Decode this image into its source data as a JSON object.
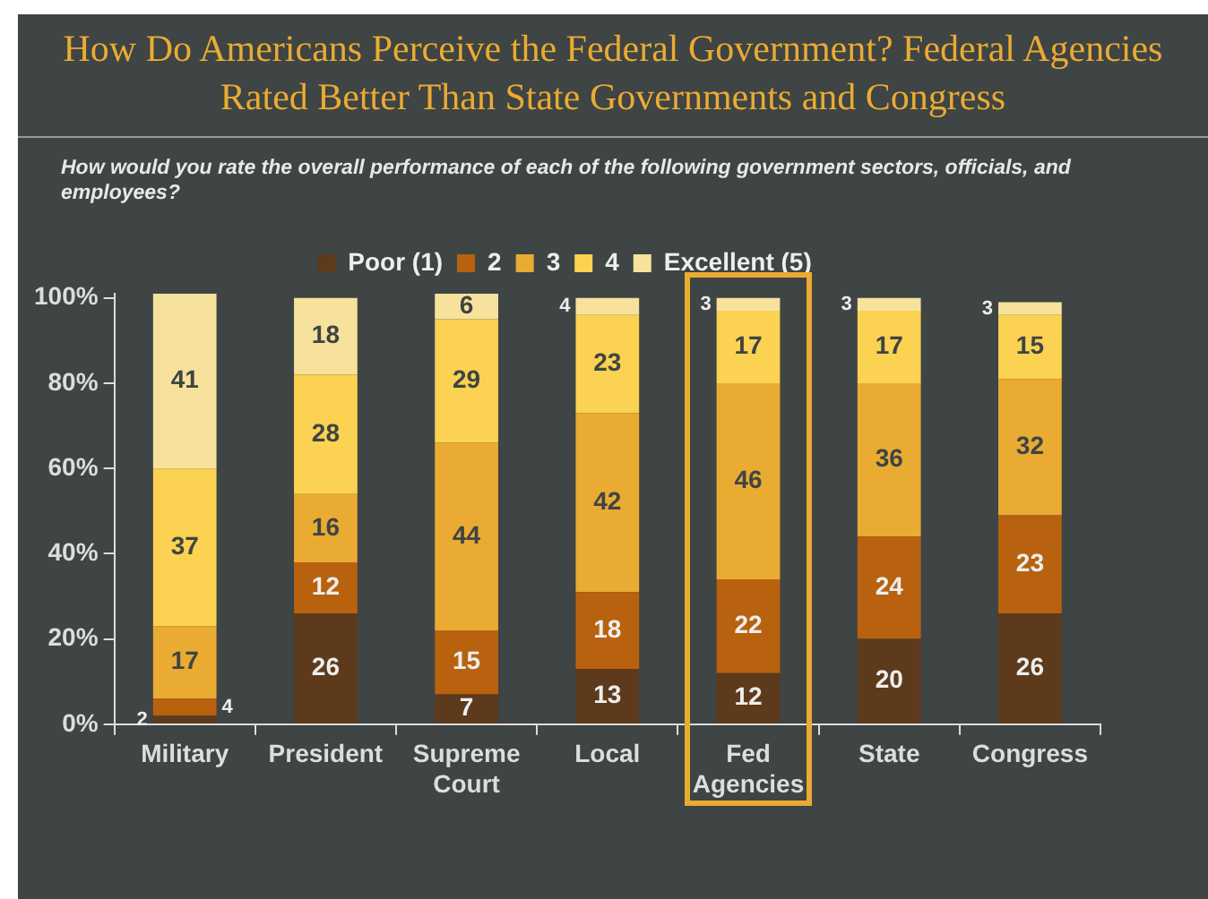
{
  "chart_data": {
    "type": "bar",
    "stacked": true,
    "title": "How Do Americans Perceive the Federal Government? Federal Agencies Rated Better Than State Governments and Congress",
    "subtitle": "How would you rate the overall performance of each of the following government sectors, officials, and employees?",
    "categories": [
      "Military",
      "President",
      "Supreme Court",
      "Local",
      "Fed Agencies",
      "State",
      "Congress"
    ],
    "series": [
      {
        "name": "Poor (1)",
        "color": "#5e3a1c",
        "values": [
          2,
          26,
          7,
          13,
          12,
          20,
          26
        ]
      },
      {
        "name": "2",
        "color": "#b8620f",
        "values": [
          4,
          12,
          15,
          18,
          22,
          24,
          23
        ]
      },
      {
        "name": "3",
        "color": "#eaab32",
        "values": [
          17,
          16,
          44,
          42,
          46,
          36,
          32
        ]
      },
      {
        "name": "4",
        "color": "#fbd251",
        "values": [
          37,
          28,
          29,
          23,
          17,
          17,
          15
        ]
      },
      {
        "name": "Excellent (5)",
        "color": "#f6e29c",
        "values": [
          41,
          18,
          6,
          4,
          3,
          3,
          3
        ]
      }
    ],
    "ylim": [
      0,
      101
    ],
    "yticks": [
      {
        "value": 0,
        "label": "0%"
      },
      {
        "value": 20,
        "label": "20%"
      },
      {
        "value": 40,
        "label": "40%"
      },
      {
        "value": 60,
        "label": "60%"
      },
      {
        "value": 80,
        "label": "80%"
      },
      {
        "value": 100,
        "label": "100%"
      }
    ],
    "grid": false,
    "legend": "top",
    "data_labels": true
  }
}
